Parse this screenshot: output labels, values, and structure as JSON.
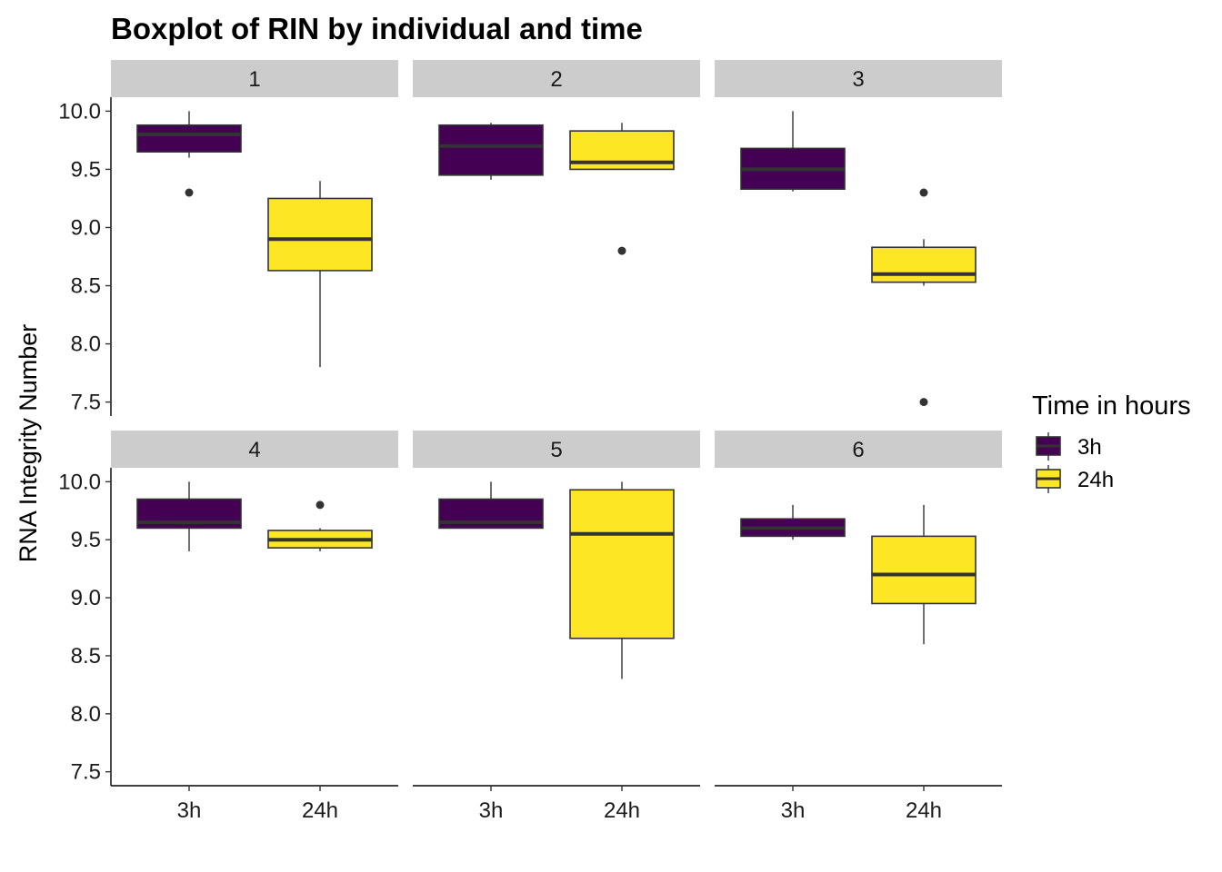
{
  "chart_data": {
    "type": "boxplot",
    "title": "Boxplot of RIN by individual and time",
    "ylabel": "RNA Integrity Number",
    "xlabel": "",
    "ylim": [
      7.38,
      10.12
    ],
    "y_ticks": [
      "7.5",
      "8.0",
      "8.5",
      "9.0",
      "9.5",
      "10.0"
    ],
    "y_tick_values": [
      7.5,
      8.0,
      8.5,
      9.0,
      9.5,
      10.0
    ],
    "categories": [
      "3h",
      "24h"
    ],
    "grid": false,
    "legend": {
      "title": "Time in hours",
      "placement": "right",
      "items": [
        {
          "label": "3h",
          "color": "#440154"
        },
        {
          "label": "24h",
          "color": "#FDE725"
        }
      ]
    },
    "colors": {
      "3h": "#440154",
      "24h": "#FDE725",
      "strip_bg": "#CCCCCC",
      "box_line": "#333333"
    },
    "panels": [
      {
        "label": "1",
        "boxes": [
          {
            "category": "3h",
            "whisker_low": 9.6,
            "q1": 9.65,
            "median": 9.8,
            "q3": 9.88,
            "whisker_high": 10.0,
            "outliers": [
              9.3
            ]
          },
          {
            "category": "24h",
            "whisker_low": 7.8,
            "q1": 8.63,
            "median": 8.9,
            "q3": 9.25,
            "whisker_high": 9.4,
            "outliers": []
          }
        ]
      },
      {
        "label": "2",
        "boxes": [
          {
            "category": "3h",
            "whisker_low": 9.41,
            "q1": 9.45,
            "median": 9.7,
            "q3": 9.88,
            "whisker_high": 9.9,
            "outliers": []
          },
          {
            "category": "24h",
            "whisker_low": 9.5,
            "q1": 9.5,
            "median": 9.56,
            "q3": 9.83,
            "whisker_high": 9.9,
            "outliers": [
              8.8
            ]
          }
        ]
      },
      {
        "label": "3",
        "boxes": [
          {
            "category": "3h",
            "whisker_low": 9.31,
            "q1": 9.33,
            "median": 9.5,
            "q3": 9.68,
            "whisker_high": 10.0,
            "outliers": []
          },
          {
            "category": "24h",
            "whisker_low": 8.5,
            "q1": 8.53,
            "median": 8.6,
            "q3": 8.83,
            "whisker_high": 8.9,
            "outliers": [
              9.3,
              7.5
            ]
          }
        ]
      },
      {
        "label": "4",
        "boxes": [
          {
            "category": "3h",
            "whisker_low": 9.4,
            "q1": 9.6,
            "median": 9.65,
            "q3": 9.85,
            "whisker_high": 10.0,
            "outliers": []
          },
          {
            "category": "24h",
            "whisker_low": 9.4,
            "q1": 9.43,
            "median": 9.5,
            "q3": 9.58,
            "whisker_high": 9.6,
            "outliers": [
              9.8
            ]
          }
        ]
      },
      {
        "label": "5",
        "boxes": [
          {
            "category": "3h",
            "whisker_low": 9.6,
            "q1": 9.6,
            "median": 9.65,
            "q3": 9.85,
            "whisker_high": 10.0,
            "outliers": []
          },
          {
            "category": "24h",
            "whisker_low": 8.3,
            "q1": 8.65,
            "median": 9.55,
            "q3": 9.93,
            "whisker_high": 10.0,
            "outliers": []
          }
        ]
      },
      {
        "label": "6",
        "boxes": [
          {
            "category": "3h",
            "whisker_low": 9.5,
            "q1": 9.53,
            "median": 9.6,
            "q3": 9.68,
            "whisker_high": 9.8,
            "outliers": []
          },
          {
            "category": "24h",
            "whisker_low": 8.6,
            "q1": 8.95,
            "median": 9.2,
            "q3": 9.53,
            "whisker_high": 9.8,
            "outliers": []
          }
        ]
      }
    ]
  }
}
